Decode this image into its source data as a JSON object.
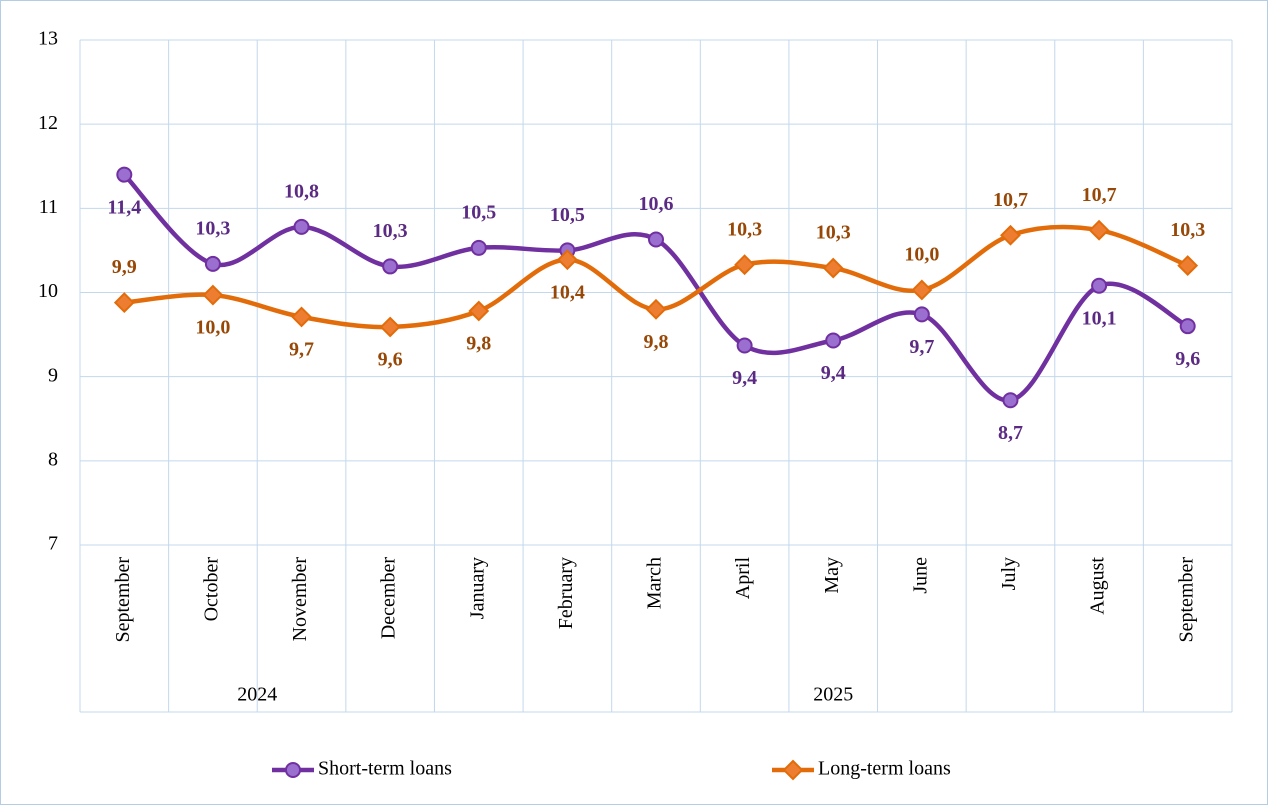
{
  "chart_data": {
    "type": "line",
    "categories": [
      "September",
      "October",
      "November",
      "December",
      "January",
      "February",
      "March",
      "April",
      "May",
      "June",
      "July",
      "August",
      "September"
    ],
    "category_groups": [
      {
        "label": "2024",
        "count": 4
      },
      {
        "label": "2025",
        "count": 9
      }
    ],
    "series": [
      {
        "name": "Short-term loans",
        "color": "#7030a0",
        "marker": "circle",
        "marker_color": "#9b6fcf",
        "label_color": "#5b2a82",
        "values": [
          11.4,
          10.34,
          10.78,
          10.31,
          10.53,
          10.5,
          10.63,
          9.37,
          9.43,
          9.74,
          8.72,
          10.08,
          9.6
        ],
        "value_labels": [
          "11,4",
          "10,3",
          "10,8",
          "10,3",
          "10,5",
          "10,5",
          "10,6",
          "9,4",
          "9,4",
          "9,7",
          "8,7",
          "10,1",
          "9,6"
        ]
      },
      {
        "name": "Long-term loans",
        "color": "#e36c0a",
        "marker": "diamond",
        "marker_color": "#ed7d31",
        "label_color": "#984806",
        "values": [
          9.88,
          9.97,
          9.71,
          9.59,
          9.78,
          10.39,
          9.8,
          10.33,
          10.29,
          10.03,
          10.68,
          10.74,
          10.32
        ],
        "value_labels": [
          "9,9",
          "10,0",
          "9,7",
          "9,6",
          "9,8",
          "10,4",
          "9,8",
          "10,3",
          "10,3",
          "10,0",
          "10,7",
          "10,7",
          "10,3"
        ]
      }
    ],
    "ylim": [
      7,
      13
    ],
    "yticks": [
      7,
      8,
      9,
      10,
      11,
      12,
      13
    ],
    "grid": true,
    "smooth": true,
    "legend": "bottom"
  }
}
